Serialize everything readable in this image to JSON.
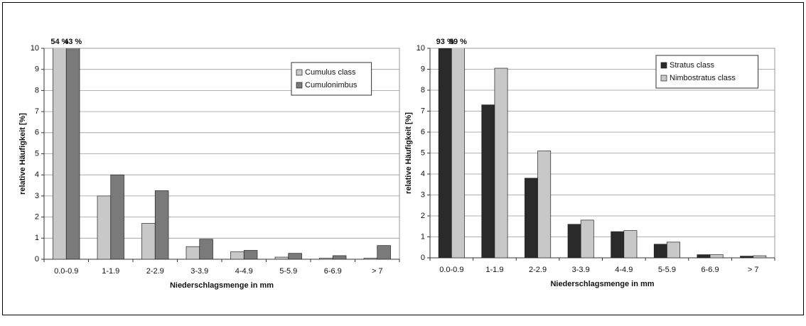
{
  "chart_data": [
    {
      "type": "bar",
      "categories": [
        "0.0-0.9",
        "1-1.9",
        "2-2.9",
        "3-3.9",
        "4-4.9",
        "5-5.9",
        "6-6.9",
        "> 7"
      ],
      "series": [
        {
          "name": "Cumulus class",
          "color": "#c8c8c8",
          "values": [
            54,
            3.0,
            1.7,
            0.6,
            0.35,
            0.1,
            0.05,
            0.05
          ],
          "value_labels": [
            "54 %",
            null,
            null,
            null,
            null,
            null,
            null,
            null
          ]
        },
        {
          "name": "Cumulonimbus",
          "color": "#7a7a7a",
          "values": [
            43,
            4.0,
            3.25,
            0.95,
            0.42,
            0.28,
            0.17,
            0.65
          ],
          "value_labels": [
            "43 %",
            null,
            null,
            null,
            null,
            null,
            null,
            null
          ]
        }
      ],
      "ylabel": "relative Häufigkeit [%]",
      "xlabel": "Niederschlagsmenge in mm",
      "ylim": [
        0,
        10
      ],
      "yticks": [
        0,
        1,
        2,
        3,
        4,
        5,
        6,
        7,
        8,
        9,
        10
      ],
      "grid": true,
      "legend": "upper right"
    },
    {
      "type": "bar",
      "categories": [
        "0.0-0.9",
        "1-1.9",
        "2-2.9",
        "3-3.9",
        "4-4.9",
        "5-5.9",
        "6-6.9",
        "> 7"
      ],
      "series": [
        {
          "name": "Stratus class",
          "color": "#2a2a2a",
          "values": [
            93,
            7.3,
            3.8,
            1.6,
            1.25,
            0.65,
            0.15,
            0.08
          ],
          "value_labels": [
            "93 %",
            null,
            null,
            null,
            null,
            null,
            null,
            null
          ]
        },
        {
          "name": "Nimbostratus class",
          "color": "#c8c8c8",
          "values": [
            89,
            9.05,
            5.1,
            1.8,
            1.3,
            0.75,
            0.15,
            0.1
          ],
          "value_labels": [
            "89 %",
            null,
            null,
            null,
            null,
            null,
            null,
            null
          ]
        }
      ],
      "ylabel": "relative Häufigkeit [%]",
      "xlabel": "Niederschlagsmenge in mm",
      "ylim": [
        0,
        10
      ],
      "yticks": [
        0,
        1,
        2,
        3,
        4,
        5,
        6,
        7,
        8,
        9,
        10
      ],
      "grid": true,
      "legend": "upper right"
    }
  ]
}
